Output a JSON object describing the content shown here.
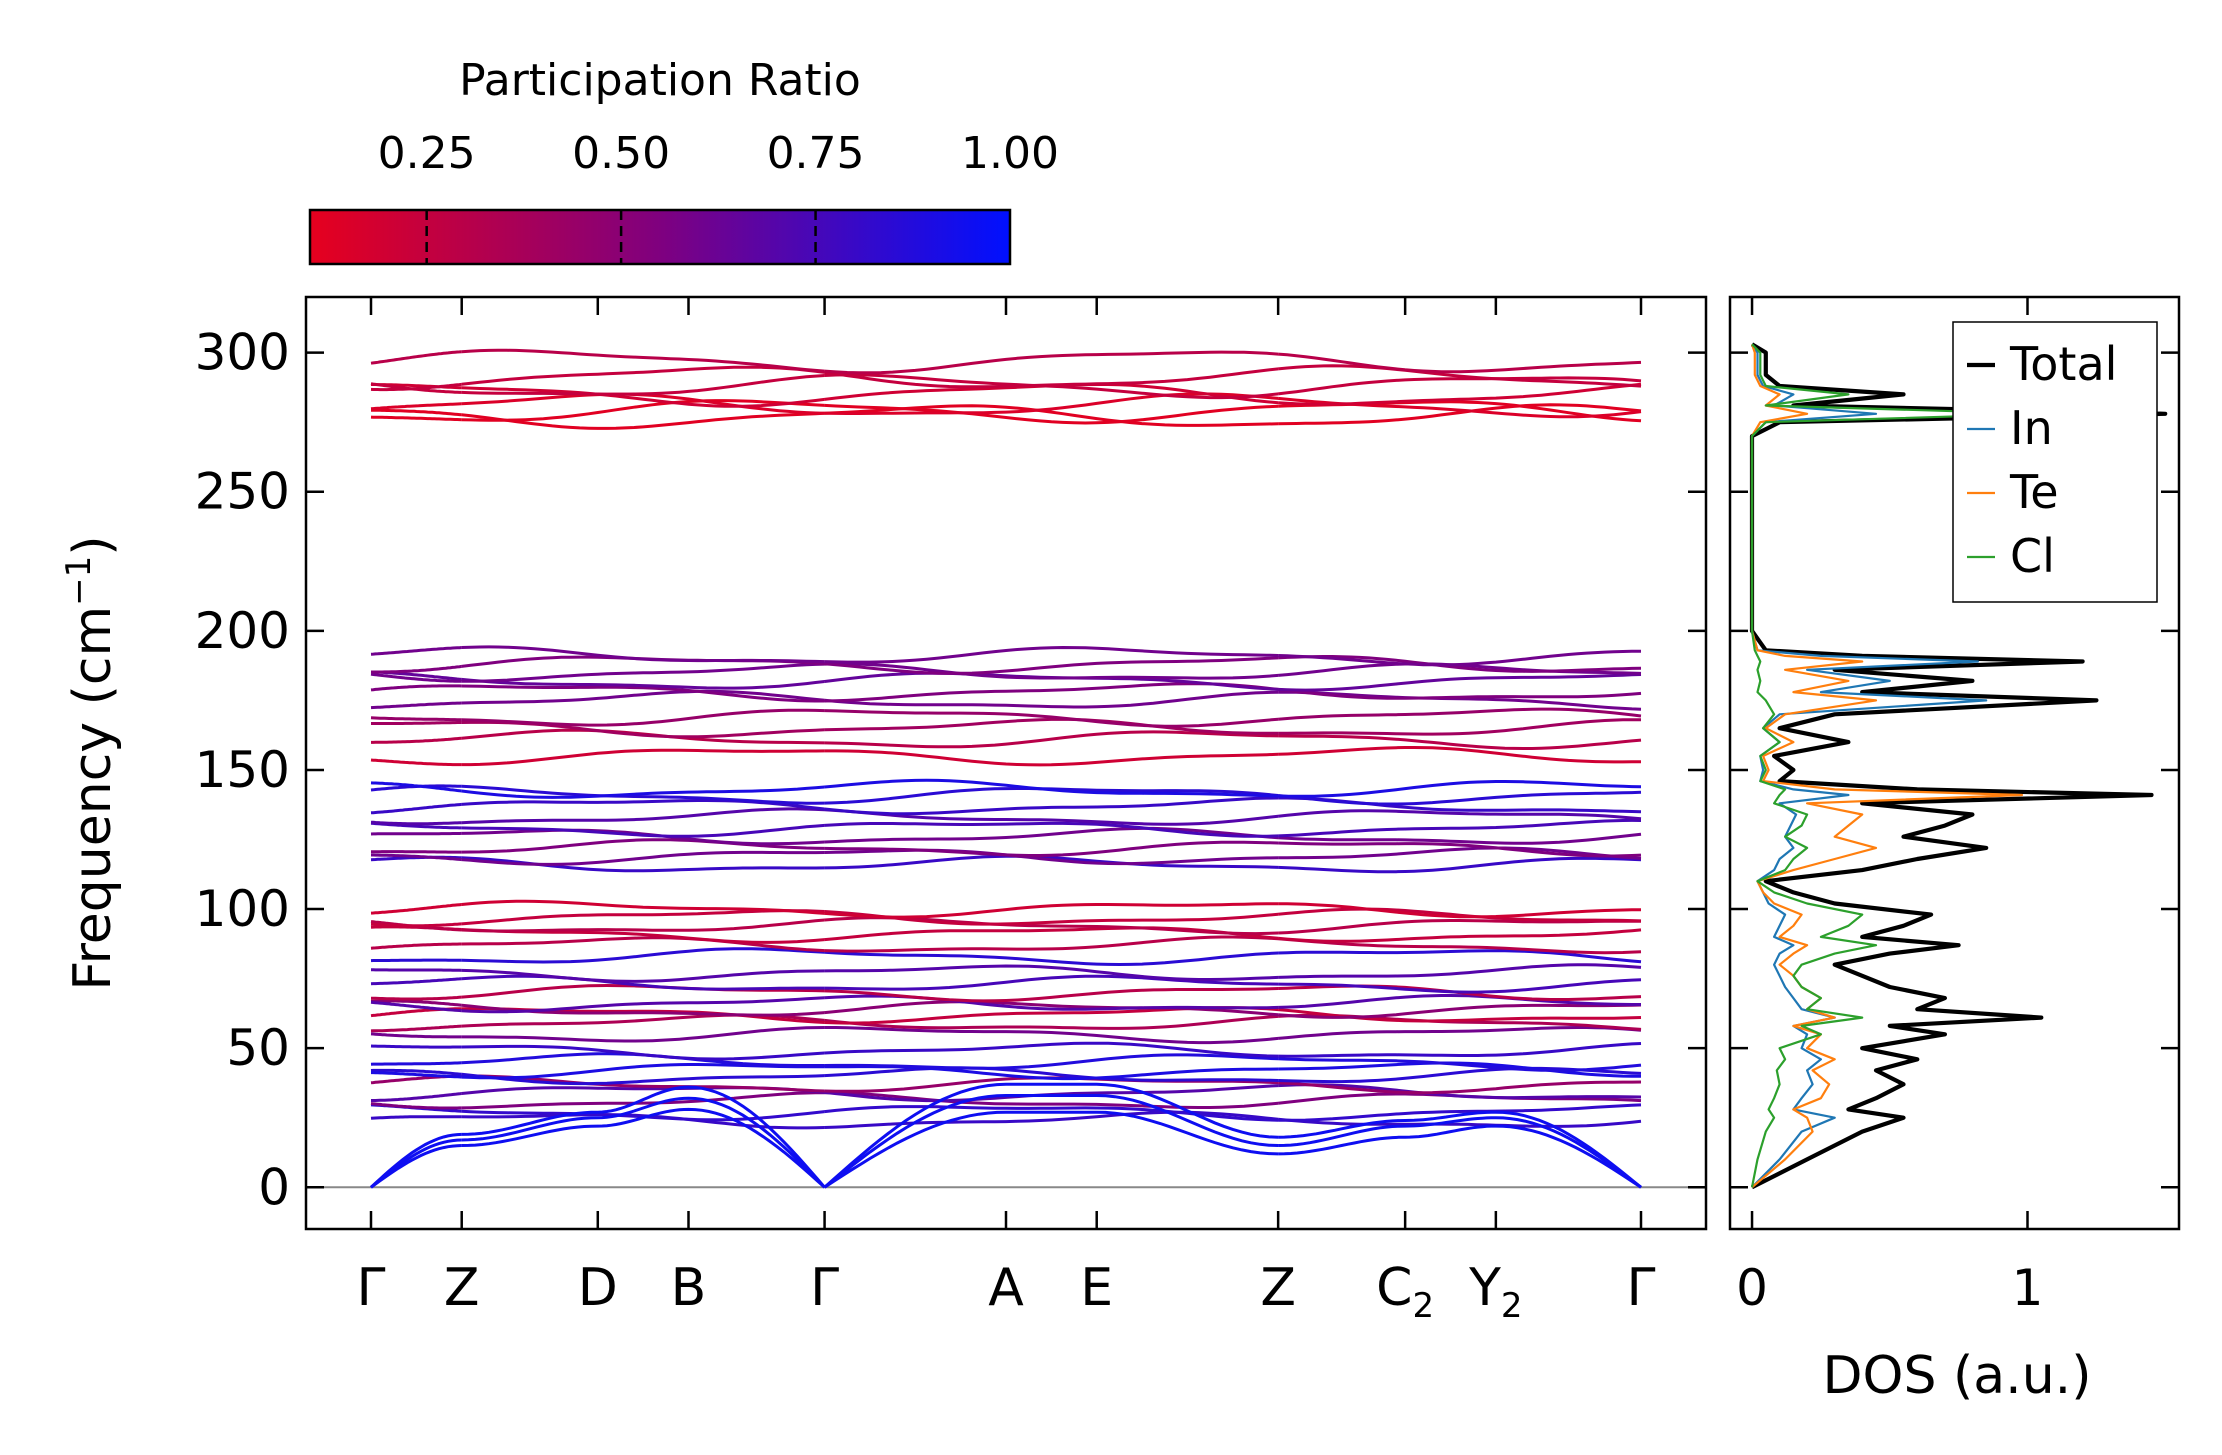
{
  "colorbar": {
    "title": "Participation Ratio",
    "ticks": [
      0.25,
      0.5,
      0.75,
      1.0
    ],
    "tick_labels": [
      "0.25",
      "0.50",
      "0.75",
      "1.00"
    ],
    "range": [
      0.1,
      1.0
    ],
    "color_low": "#e6001e",
    "color_mid": "#7f007f",
    "color_high": "#0010ff"
  },
  "chart_data": [
    {
      "type": "line",
      "name": "phonon-band-structure",
      "ylabel": "Frequency (cm",
      "ylabel_sup": "−1",
      "ylabel_tail": ")",
      "ylim": [
        -15,
        320
      ],
      "yticks": [
        0,
        50,
        100,
        150,
        200,
        250,
        300
      ],
      "high_symmetry_points": [
        {
          "label": "Γ",
          "sub": ""
        },
        {
          "label": "Z",
          "sub": ""
        },
        {
          "label": "D",
          "sub": ""
        },
        {
          "label": "B",
          "sub": ""
        },
        {
          "label": "Γ",
          "sub": ""
        },
        {
          "label": "A",
          "sub": ""
        },
        {
          "label": "E",
          "sub": ""
        },
        {
          "label": "Z",
          "sub": ""
        },
        {
          "label": "C",
          "sub": "2"
        },
        {
          "label": "Y",
          "sub": "2"
        },
        {
          "label": "Γ",
          "sub": ""
        }
      ],
      "path_position": [
        0,
        1,
        2.5,
        3.5,
        5,
        7,
        8,
        10,
        11.4,
        12.4,
        14
      ],
      "segment_breaks_after": [
        1,
        4,
        7
      ],
      "acoustic_modes": [
        {
          "values": [
            0,
            15,
            22,
            28,
            0,
            27,
            27,
            12,
            18,
            22,
            0
          ],
          "pr": 0.95
        },
        {
          "values": [
            0,
            17,
            25,
            32,
            0,
            33,
            33,
            15,
            22,
            25,
            0
          ],
          "pr": 0.95
        },
        {
          "values": [
            0,
            19,
            27,
            36,
            0,
            37,
            37,
            18,
            24,
            27,
            0
          ],
          "pr": 0.95
        }
      ],
      "optical_modes": [
        {
          "f": 24,
          "pr": 0.8
        },
        {
          "f": 27,
          "pr": 0.82
        },
        {
          "f": 31,
          "pr": 0.55
        },
        {
          "f": 34,
          "pr": 0.7
        },
        {
          "f": 37,
          "pr": 0.45
        },
        {
          "f": 40,
          "pr": 0.85
        },
        {
          "f": 42,
          "pr": 0.9
        },
        {
          "f": 45,
          "pr": 0.88
        },
        {
          "f": 49,
          "pr": 0.8
        },
        {
          "f": 55,
          "pr": 0.6
        },
        {
          "f": 59,
          "pr": 0.35
        },
        {
          "f": 62,
          "pr": 0.25
        },
        {
          "f": 64,
          "pr": 0.5
        },
        {
          "f": 66,
          "pr": 0.7
        },
        {
          "f": 70,
          "pr": 0.3
        },
        {
          "f": 73,
          "pr": 0.75
        },
        {
          "f": 77,
          "pr": 0.7
        },
        {
          "f": 83,
          "pr": 0.85
        },
        {
          "f": 87,
          "pr": 0.3
        },
        {
          "f": 91,
          "pr": 0.25
        },
        {
          "f": 94,
          "pr": 0.3
        },
        {
          "f": 97,
          "pr": 0.25
        },
        {
          "f": 100,
          "pr": 0.2
        },
        {
          "f": 116,
          "pr": 0.8
        },
        {
          "f": 119,
          "pr": 0.6
        },
        {
          "f": 122,
          "pr": 0.55
        },
        {
          "f": 126,
          "pr": 0.6
        },
        {
          "f": 129,
          "pr": 0.75
        },
        {
          "f": 133,
          "pr": 0.7
        },
        {
          "f": 137,
          "pr": 0.8
        },
        {
          "f": 141,
          "pr": 0.85
        },
        {
          "f": 143,
          "pr": 0.9
        },
        {
          "f": 155,
          "pr": 0.2
        },
        {
          "f": 161,
          "pr": 0.3
        },
        {
          "f": 165,
          "pr": 0.4
        },
        {
          "f": 169,
          "pr": 0.45
        },
        {
          "f": 175,
          "pr": 0.6
        },
        {
          "f": 178,
          "pr": 0.55
        },
        {
          "f": 182,
          "pr": 0.65
        },
        {
          "f": 185,
          "pr": 0.6
        },
        {
          "f": 188,
          "pr": 0.55
        },
        {
          "f": 191,
          "pr": 0.6
        },
        {
          "f": 277,
          "pr": 0.12
        },
        {
          "f": 279,
          "pr": 0.12
        },
        {
          "f": 281,
          "pr": 0.15
        },
        {
          "f": 285,
          "pr": 0.2
        },
        {
          "f": 288,
          "pr": 0.25
        },
        {
          "f": 291,
          "pr": 0.25
        },
        {
          "f": 297,
          "pr": 0.3
        }
      ]
    },
    {
      "type": "line",
      "name": "phonon-dos",
      "xlabel": "DOS (a.u.)",
      "xticks": [
        0,
        1
      ],
      "xlim": [
        -0.08,
        1.55
      ],
      "ylim": [
        -15,
        320
      ],
      "legend_position": "top-right",
      "series": [
        {
          "name": "Total",
          "color": "#000000",
          "width": 4.2,
          "freq": [
            0,
            10,
            20,
            25,
            28,
            32,
            37,
            42,
            46,
            50,
            55,
            58,
            61,
            64,
            68,
            72,
            76,
            80,
            84,
            87,
            90,
            94,
            98,
            102,
            106,
            110,
            114,
            118,
            122,
            126,
            130,
            134,
            138,
            141,
            143,
            146,
            150,
            155,
            160,
            165,
            170,
            175,
            178,
            182,
            186,
            189,
            191,
            193,
            200,
            270,
            275,
            278,
            281,
            285,
            288,
            292,
            300,
            303
          ],
          "dos": [
            0,
            0.2,
            0.4,
            0.55,
            0.35,
            0.45,
            0.55,
            0.45,
            0.6,
            0.4,
            0.7,
            0.5,
            1.05,
            0.6,
            0.7,
            0.5,
            0.4,
            0.3,
            0.5,
            0.75,
            0.4,
            0.55,
            0.65,
            0.3,
            0.15,
            0.05,
            0.4,
            0.6,
            0.85,
            0.55,
            0.7,
            0.8,
            0.4,
            1.45,
            0.6,
            0.1,
            0.15,
            0.08,
            0.35,
            0.1,
            0.3,
            1.25,
            0.4,
            0.8,
            0.3,
            1.2,
            0.4,
            0.05,
            0,
            0,
            0.1,
            1.5,
            0.15,
            0.55,
            0.1,
            0.05,
            0.05,
            0
          ]
        },
        {
          "name": "In",
          "color": "#1f77b4",
          "width": 2.2,
          "freq": [
            0,
            10,
            20,
            25,
            28,
            32,
            37,
            42,
            46,
            50,
            55,
            58,
            61,
            64,
            68,
            72,
            76,
            80,
            84,
            87,
            90,
            94,
            98,
            102,
            106,
            110,
            114,
            118,
            122,
            126,
            130,
            134,
            138,
            141,
            143,
            146,
            150,
            155,
            160,
            165,
            170,
            175,
            178,
            182,
            186,
            189,
            191,
            193,
            200,
            270,
            275,
            278,
            281,
            285,
            288,
            292,
            300,
            303
          ],
          "dos": [
            0,
            0.1,
            0.18,
            0.3,
            0.15,
            0.18,
            0.22,
            0.2,
            0.25,
            0.18,
            0.2,
            0.15,
            0.3,
            0.18,
            0.15,
            0.12,
            0.1,
            0.08,
            0.1,
            0.15,
            0.08,
            0.1,
            0.12,
            0.06,
            0.04,
            0.02,
            0.08,
            0.1,
            0.15,
            0.12,
            0.14,
            0.16,
            0.1,
            0.35,
            0.15,
            0.03,
            0.04,
            0.03,
            0.1,
            0.04,
            0.1,
            0.85,
            0.25,
            0.5,
            0.2,
            0.82,
            0.25,
            0.02,
            0,
            0,
            0.05,
            0.45,
            0.08,
            0.15,
            0.04,
            0.02,
            0.02,
            0
          ]
        },
        {
          "name": "Te",
          "color": "#ff7f0e",
          "width": 2.2,
          "freq": [
            0,
            10,
            20,
            25,
            28,
            32,
            37,
            42,
            46,
            50,
            55,
            58,
            61,
            64,
            68,
            72,
            76,
            80,
            84,
            87,
            90,
            94,
            98,
            102,
            106,
            110,
            114,
            118,
            122,
            126,
            130,
            134,
            138,
            141,
            143,
            146,
            150,
            155,
            160,
            165,
            170,
            175,
            178,
            182,
            186,
            189,
            191,
            193,
            200,
            270,
            275,
            278,
            281,
            285,
            288,
            292,
            300,
            303
          ],
          "dos": [
            0,
            0.12,
            0.22,
            0.2,
            0.15,
            0.25,
            0.28,
            0.22,
            0.3,
            0.2,
            0.25,
            0.15,
            0.3,
            0.2,
            0.25,
            0.18,
            0.15,
            0.1,
            0.15,
            0.2,
            0.1,
            0.15,
            0.18,
            0.08,
            0.04,
            0.02,
            0.15,
            0.3,
            0.45,
            0.3,
            0.35,
            0.4,
            0.2,
            0.98,
            0.3,
            0.04,
            0.06,
            0.04,
            0.15,
            0.05,
            0.12,
            0.45,
            0.15,
            0.35,
            0.12,
            0.4,
            0.12,
            0.02,
            0,
            0,
            0.03,
            0.2,
            0.05,
            0.1,
            0.03,
            0.01,
            0.01,
            0
          ]
        },
        {
          "name": "Cl",
          "color": "#2ca02c",
          "width": 2.2,
          "freq": [
            0,
            10,
            20,
            25,
            28,
            32,
            37,
            42,
            46,
            50,
            55,
            58,
            61,
            64,
            68,
            72,
            76,
            80,
            84,
            87,
            90,
            94,
            98,
            102,
            106,
            110,
            114,
            118,
            122,
            126,
            130,
            134,
            138,
            141,
            143,
            146,
            150,
            155,
            160,
            165,
            170,
            175,
            178,
            182,
            186,
            189,
            191,
            193,
            200,
            270,
            275,
            278,
            281,
            285,
            288,
            292,
            300,
            303
          ],
          "dos": [
            0,
            0.02,
            0.05,
            0.08,
            0.06,
            0.08,
            0.1,
            0.09,
            0.12,
            0.1,
            0.25,
            0.18,
            0.4,
            0.2,
            0.25,
            0.18,
            0.15,
            0.18,
            0.3,
            0.45,
            0.25,
            0.35,
            0.4,
            0.2,
            0.08,
            0.02,
            0.12,
            0.15,
            0.2,
            0.12,
            0.18,
            0.2,
            0.08,
            0.1,
            0.12,
            0.03,
            0.05,
            0.03,
            0.1,
            0.04,
            0.08,
            0.05,
            0.02,
            0.03,
            0.02,
            0.03,
            0.02,
            0.01,
            0,
            0,
            0.05,
            1.05,
            0.05,
            0.35,
            0.05,
            0.03,
            0.03,
            0
          ]
        }
      ]
    }
  ]
}
